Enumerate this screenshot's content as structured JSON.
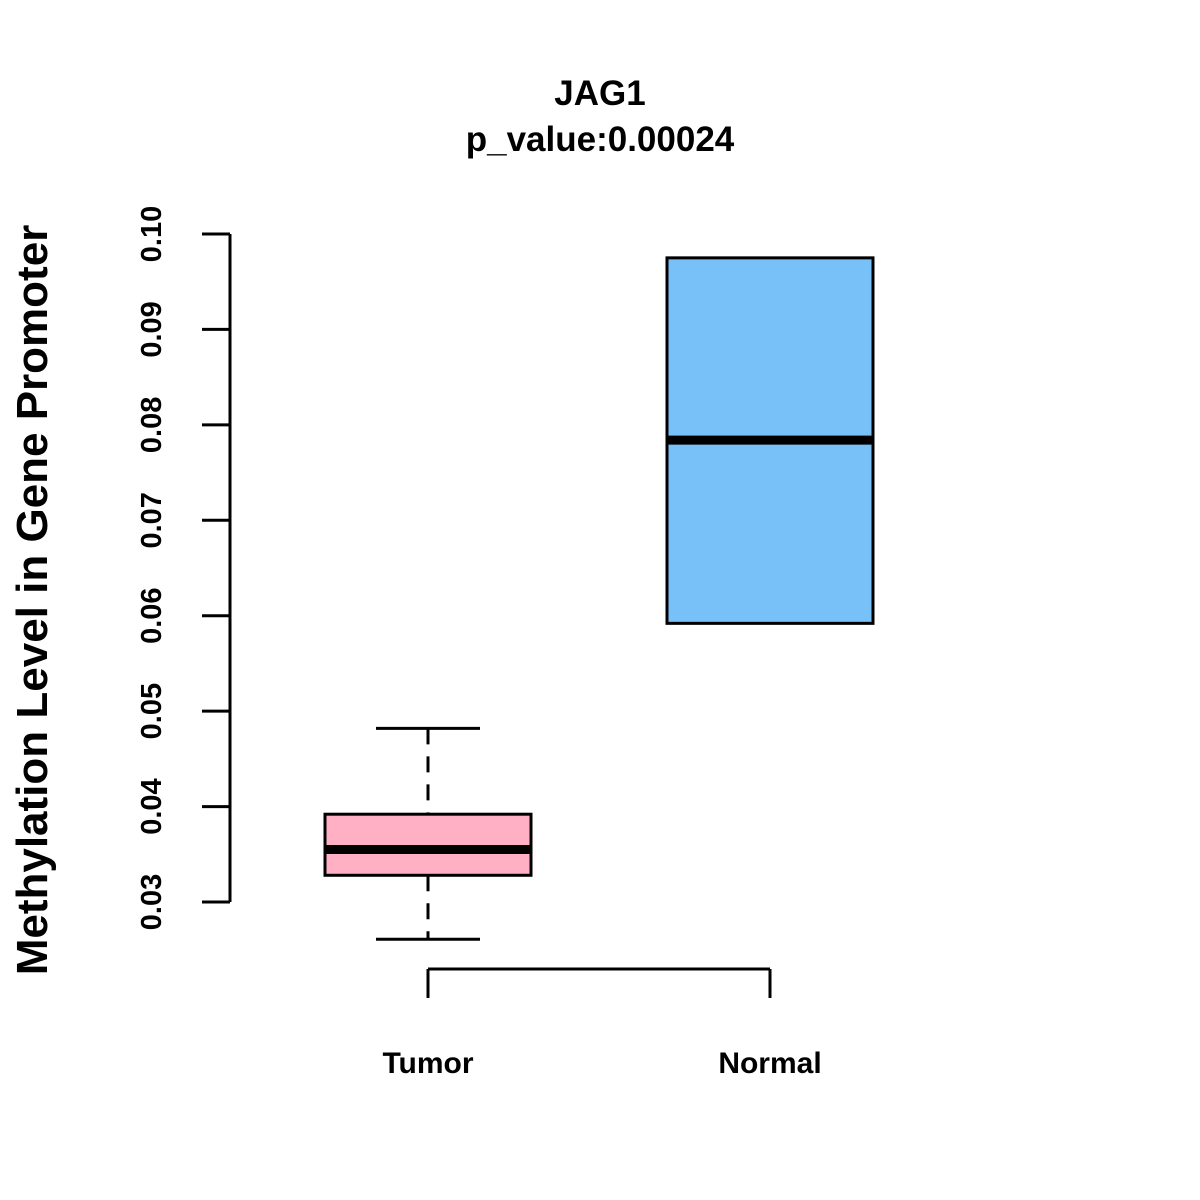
{
  "chart_data": {
    "type": "box",
    "title": "JAG1",
    "subtitle": "p_value:0.00024",
    "xlabel": "",
    "ylabel": "Methylation Level in Gene Promoter",
    "ylim": [
      0.03,
      0.1
    ],
    "yticks": [
      "0.03",
      "0.04",
      "0.05",
      "0.06",
      "0.07",
      "0.08",
      "0.09",
      "0.10"
    ],
    "categories": [
      "Tumor",
      "Normal"
    ],
    "series": [
      {
        "name": "Tumor",
        "whisker_low": 0.0261,
        "q1": 0.0328,
        "median": 0.0355,
        "q3": 0.0392,
        "whisker_high": 0.0482,
        "color": "#FFB0C4"
      },
      {
        "name": "Normal",
        "whisker_low": 0.0592,
        "q1": 0.0592,
        "median": 0.0784,
        "q3": 0.0975,
        "whisker_high": 0.0975,
        "color": "#77C0F8"
      }
    ],
    "grid": false
  }
}
